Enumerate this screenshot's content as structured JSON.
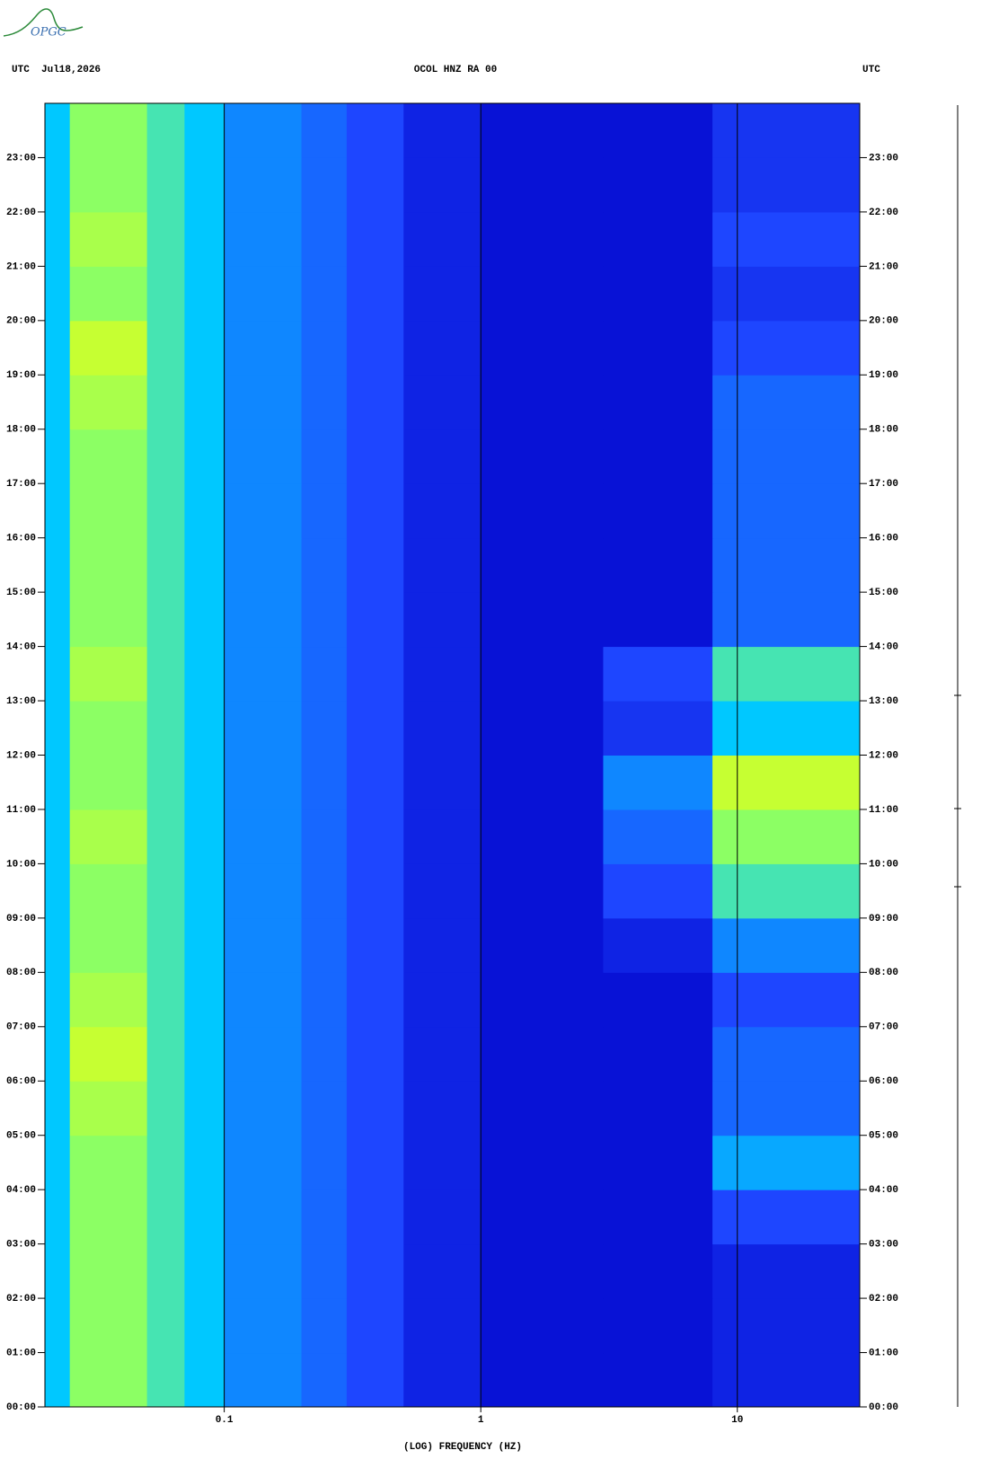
{
  "chart_data": {
    "type": "heatmap",
    "logo": "OPGC",
    "header_left": "UTC  Jul18,2026",
    "title": "OCOL HNZ RA 00",
    "header_right": "UTC",
    "xlabel": "(LOG) FREQUENCY (HZ)",
    "xscale": "log",
    "xlim": [
      0.02,
      30
    ],
    "xticks": [
      0.1,
      1,
      10
    ],
    "ylim": [
      0,
      24
    ],
    "yticks": [
      {
        "value": 0,
        "label": "00:00"
      },
      {
        "value": 1,
        "label": "01:00"
      },
      {
        "value": 2,
        "label": "02:00"
      },
      {
        "value": 3,
        "label": "03:00"
      },
      {
        "value": 4,
        "label": "04:00"
      },
      {
        "value": 5,
        "label": "05:00"
      },
      {
        "value": 6,
        "label": "06:00"
      },
      {
        "value": 7,
        "label": "07:00"
      },
      {
        "value": 8,
        "label": "08:00"
      },
      {
        "value": 9,
        "label": "09:00"
      },
      {
        "value": 10,
        "label": "10:00"
      },
      {
        "value": 11,
        "label": "11:00"
      },
      {
        "value": 12,
        "label": "12:00"
      },
      {
        "value": 13,
        "label": "13:00"
      },
      {
        "value": 14,
        "label": "14:00"
      },
      {
        "value": 15,
        "label": "15:00"
      },
      {
        "value": 16,
        "label": "16:00"
      },
      {
        "value": 17,
        "label": "17:00"
      },
      {
        "value": 18,
        "label": "18:00"
      },
      {
        "value": 19,
        "label": "19:00"
      },
      {
        "value": 20,
        "label": "20:00"
      },
      {
        "value": 21,
        "label": "21:00"
      },
      {
        "value": 22,
        "label": "22:00"
      },
      {
        "value": 23,
        "label": "23:00"
      }
    ],
    "x_bins": [
      0.02,
      0.025,
      0.05,
      0.07,
      0.1,
      0.2,
      0.3,
      0.5,
      1,
      3,
      8,
      30
    ],
    "y_bins": [
      0,
      1,
      2,
      3,
      4,
      5,
      6,
      7,
      8,
      9,
      10,
      11,
      12,
      13,
      14,
      15,
      16,
      17,
      18,
      19,
      20,
      21,
      22,
      23,
      24
    ],
    "clim": [
      0,
      10
    ],
    "colormap": [
      "#0000c8",
      "#1e46ff",
      "#00c8ff",
      "#8cff64",
      "#ffff00",
      "#ff0000"
    ],
    "grid": true,
    "values": [
      [
        4,
        6,
        5,
        4,
        3,
        2.5,
        2,
        1,
        0.5,
        0.5,
        1
      ],
      [
        4,
        6,
        5,
        4,
        3,
        2.5,
        2,
        1,
        0.5,
        0.5,
        1
      ],
      [
        4,
        6,
        5,
        4,
        3,
        2.5,
        2,
        1,
        0.5,
        0.5,
        1
      ],
      [
        4,
        6,
        5,
        4,
        3,
        2.5,
        2,
        1,
        0.5,
        0.5,
        2
      ],
      [
        4,
        6,
        5,
        4,
        3,
        2.5,
        2,
        1,
        0.5,
        0.5,
        3.5
      ],
      [
        4,
        6.5,
        5,
        4,
        3,
        2.5,
        2,
        1,
        0.5,
        0.5,
        2.5
      ],
      [
        4,
        7,
        5,
        4,
        3,
        2.5,
        2,
        1,
        0.5,
        0.5,
        2.5
      ],
      [
        4,
        6.5,
        5,
        4,
        3,
        2.5,
        2,
        1,
        0.5,
        0.5,
        2
      ],
      [
        4,
        6,
        5,
        4,
        3,
        2.5,
        2,
        1,
        0.5,
        1,
        3
      ],
      [
        4,
        6,
        5,
        4,
        3,
        2.5,
        2,
        1,
        0.5,
        2,
        5
      ],
      [
        4,
        6.5,
        5,
        4,
        3,
        2.5,
        2,
        1,
        0.5,
        2.5,
        6
      ],
      [
        4,
        6,
        5,
        4,
        3,
        2.5,
        2,
        1,
        0.5,
        3,
        7
      ],
      [
        4,
        6,
        5,
        4,
        3,
        2.5,
        2,
        1,
        0.5,
        1.5,
        4
      ],
      [
        4,
        6.5,
        5,
        4,
        3,
        2.5,
        2,
        1,
        0.5,
        2,
        5
      ],
      [
        4,
        6,
        5,
        4,
        3,
        2.5,
        2,
        1,
        0.5,
        0.5,
        2.5
      ],
      [
        4,
        6,
        5,
        4,
        3,
        2.5,
        2,
        1,
        0.5,
        0.5,
        2.5
      ],
      [
        4,
        6,
        5,
        4,
        3,
        2.5,
        2,
        1,
        0.5,
        0.5,
        2.5
      ],
      [
        4,
        6,
        5,
        4,
        3,
        2.5,
        2,
        1,
        0.5,
        0.5,
        2.5
      ],
      [
        4,
        6.5,
        5,
        4,
        3,
        2.5,
        2,
        1,
        0.5,
        0.5,
        2.5
      ],
      [
        4,
        7,
        5,
        4,
        3,
        2.5,
        2,
        1,
        0.5,
        0.5,
        2
      ],
      [
        4,
        6,
        5,
        4,
        3,
        2.5,
        2,
        1,
        0.5,
        0.5,
        1.5
      ],
      [
        4,
        6.5,
        5,
        4,
        3,
        2.5,
        2,
        1,
        0.5,
        0.5,
        2
      ],
      [
        4,
        6,
        5,
        4,
        3,
        2.5,
        2,
        1,
        0.5,
        0.5,
        1.5
      ],
      [
        4,
        6,
        5,
        4,
        3,
        2.5,
        2,
        1,
        0.5,
        0.5,
        1.5
      ]
    ]
  }
}
